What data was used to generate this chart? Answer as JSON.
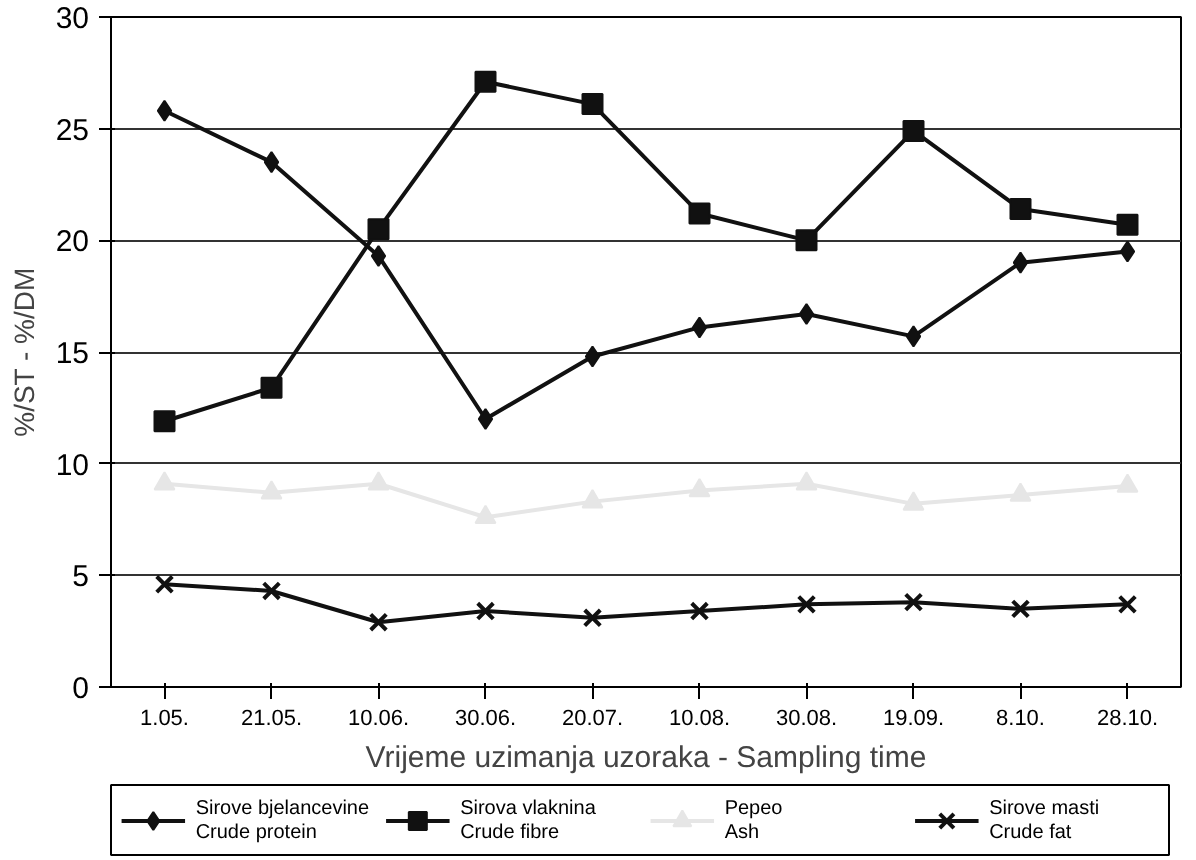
{
  "chart_data": {
    "type": "line",
    "xlabel": "Vrijeme uzimanja uzoraka - Sampling time",
    "ylabel": "%/ST - %/DM",
    "categories": [
      "1.05.",
      "21.05.",
      "10.06.",
      "30.06.",
      "20.07.",
      "10.08.",
      "30.08.",
      "19.09.",
      "8.10.",
      "28.10."
    ],
    "ylim": [
      0,
      30
    ],
    "yticks": [
      0,
      5,
      10,
      15,
      20,
      25,
      30
    ],
    "grid": "y",
    "legend": "bottom",
    "series": [
      {
        "name": "Sirove bjelancevine\nCrude protein",
        "color": "#111111",
        "marker": "diamond",
        "values": [
          25.8,
          23.5,
          19.3,
          12.0,
          14.8,
          16.1,
          16.7,
          15.7,
          19.0,
          19.5
        ]
      },
      {
        "name": "Sirova vlaknina\nCrude fibre",
        "color": "#111111",
        "marker": "square",
        "values": [
          11.9,
          13.4,
          20.5,
          27.1,
          26.1,
          21.2,
          20.0,
          24.9,
          21.4,
          20.7
        ]
      },
      {
        "name": "Pepeo\nAsh",
        "color": "#e6e6e6",
        "marker": "triangle",
        "values": [
          9.1,
          8.7,
          9.1,
          7.6,
          8.3,
          8.8,
          9.1,
          8.2,
          8.6,
          9.0
        ]
      },
      {
        "name": "Sirove masti\nCrude fat",
        "color": "#111111",
        "marker": "cross",
        "values": [
          4.6,
          4.3,
          2.9,
          3.4,
          3.1,
          3.4,
          3.7,
          3.8,
          3.5,
          3.7
        ]
      }
    ]
  }
}
